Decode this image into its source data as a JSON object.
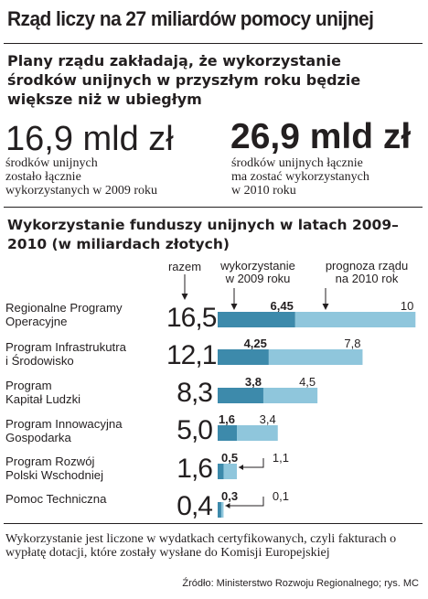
{
  "title": "Rząd liczy na 27 miliardów pomocy unijnej",
  "subtitle": "Plany rządu zakładają, że wykorzystanie środków unijnych w przyszłym roku będzie większe niż w ubiegłym",
  "stats": {
    "left": {
      "value": "16,9 mld zł",
      "note_l1": "środków unijnych",
      "note_l2": "zostało łącznie",
      "note_l3": "wykorzystanych w 2009 roku"
    },
    "right": {
      "value": "26,9 mld zł",
      "note_l1": "środków unijnych łącznie",
      "note_l2": "ma zostać wykorzystanych",
      "note_l3": "w 2010 roku"
    }
  },
  "section_title": "Wykorzystanie funduszy unijnych w latach 2009–2010 (w miliardach złotych)",
  "column_headers": {
    "total": "razem",
    "used_l1": "wykorzystanie",
    "used_l2": "w 2009 roku",
    "forecast_l1": "prognoza rządu",
    "forecast_l2": "na 2010 rok"
  },
  "colors": {
    "series_2009": "#3d8aab",
    "series_2010": "#8fc6dc",
    "text": "#231f20"
  },
  "chart_data": {
    "type": "bar",
    "orientation": "horizontal",
    "categories": [
      "Regionalne Programy Operacyjne",
      "Program Infrastrukutra i Środowisko",
      "Program Kapitał Ludzki",
      "Program Innowacyjna Gospodarka",
      "Program Rozwój Polski Wschodniej",
      "Pomoc Techniczna"
    ],
    "label_lines": [
      [
        "Regionalne Programy",
        "Operacyjne"
      ],
      [
        "Program Infrastrukutra",
        "i Środowisko"
      ],
      [
        "Program",
        "Kapitał Ludzki"
      ],
      [
        "Program Innowacyjna",
        "Gospodarka"
      ],
      [
        "Program Rozwój",
        "Polski Wschodniej"
      ],
      [
        "",
        "Pomoc Techniczna"
      ]
    ],
    "totals": [
      "16,5",
      "12,1",
      "8,3",
      "5,0",
      "1,6",
      "0,4"
    ],
    "series": [
      {
        "name": "wykorzystanie w 2009 roku",
        "values": [
          6.45,
          4.25,
          3.8,
          1.6,
          0.5,
          0.3
        ],
        "labels": [
          "6,45",
          "4,25",
          "3,8",
          "1,6",
          "0,5",
          "0,3"
        ]
      },
      {
        "name": "prognoza rządu na 2010 rok",
        "values": [
          10,
          7.8,
          4.5,
          3.4,
          1.1,
          0.1
        ],
        "labels": [
          "10",
          "7,8",
          "4,5",
          "3,4",
          "1,1",
          "0,1"
        ]
      }
    ],
    "stacked": true,
    "xlim": [
      0,
      16.5
    ]
  },
  "footnote": "Wykorzystanie jest liczone w wydatkach certyfikowanych, czyli fakturach o wypłatę dotacji, które zostały wysłane do Komisji Europejskiej",
  "source": "Źródło: Ministerstwo Rozwoju Regionalnego; rys. MC"
}
